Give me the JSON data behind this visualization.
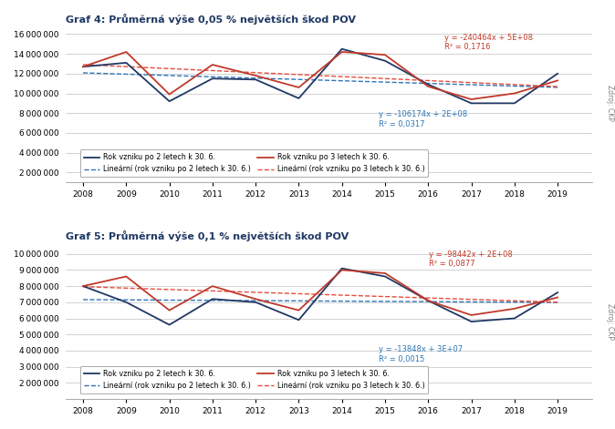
{
  "title1": "Graf 4: Průměrná výše 0,05 % největších škod POV",
  "title2": "Graf 5: Průměrná výše 0,1 % největších škod POV",
  "years": [
    2008,
    2009,
    2010,
    2011,
    2012,
    2013,
    2014,
    2015,
    2016,
    2017,
    2018,
    2019
  ],
  "g4_blue": [
    12700000,
    13100000,
    9200000,
    11500000,
    11400000,
    9500000,
    14500000,
    13300000,
    10900000,
    9000000,
    9000000,
    12000000
  ],
  "g4_red": [
    12700000,
    14200000,
    9900000,
    12900000,
    11800000,
    10600000,
    14200000,
    13900000,
    10700000,
    9400000,
    10000000,
    11300000
  ],
  "g5_blue": [
    8000000,
    7000000,
    5600000,
    7200000,
    7000000,
    5900000,
    9100000,
    8600000,
    7100000,
    5800000,
    6000000,
    7600000
  ],
  "g5_red": [
    8000000,
    8600000,
    6500000,
    8000000,
    7200000,
    6500000,
    9000000,
    8800000,
    7100000,
    6200000,
    6600000,
    7300000
  ],
  "g4_eq_red": "y = -240464x + 5E+08\nR² = 0,1716",
  "g4_eq_blue": "y = -106174x + 2E+08\nR² = 0,0317",
  "g5_eq_red": "y = -98442x + 2E+08\nR² = 0,0877",
  "g5_eq_blue": "y = -13848x + 3E+07\nR² = 0,0015",
  "color_blue": "#1F3864",
  "color_red": "#C0392B",
  "color_blue_trend": "#2E75B6",
  "color_red_trend": "#E74C3C",
  "legend_line1": "Rok vzniku po 2 letech k 30. 6.",
  "legend_line2": "Rok vzniku po 3 letech k 30. 6.",
  "legend_dash1": "Lineární (rok vzniku po 2 letech k 30. 6.)",
  "legend_dash2": "Lineární (rok vzniku po 3 letech k 30. 6.)",
  "source_label": "Zdroj: ČKP",
  "g4_ylim": [
    1000000,
    16500000
  ],
  "g4_yticks": [
    2000000,
    4000000,
    6000000,
    8000000,
    10000000,
    12000000,
    14000000,
    16000000
  ],
  "g5_ylim": [
    1000000,
    10500000
  ],
  "g5_yticks": [
    2000000,
    3000000,
    4000000,
    5000000,
    6000000,
    7000000,
    8000000,
    9000000,
    10000000
  ]
}
